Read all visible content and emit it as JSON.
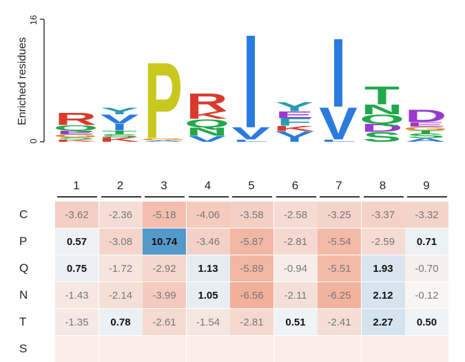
{
  "logo": {
    "ylabel": "Enriched residues",
    "ymax_label": "16",
    "ymin_label": "0",
    "colors": {
      "P": "#c8c81e",
      "V": "#2a7be0",
      "I": "#2a7be0",
      "L": "#2a7be0",
      "Y": "#2a9bb0",
      "R": "#d93a2b",
      "K": "#d93a2b",
      "H": "#d93a2b",
      "E": "#9a3ad0",
      "D": "#9a3ad0",
      "T": "#21a84a",
      "N": "#21a84a",
      "Q": "#21a84a",
      "S": "#21a84a",
      "G": "#e08a1e",
      "A": "#2a7be0",
      "F": "#2a9bb0",
      "M": "#2a7be0",
      "C": "#21a84a",
      "W": "#2a9bb0"
    },
    "stacks": [
      {
        "pos": "1",
        "letters": [
          {
            "aa": "R",
            "h": 1.6
          },
          {
            "aa": "Q",
            "h": 0.7
          },
          {
            "aa": "E",
            "h": 0.5
          },
          {
            "aa": "G",
            "h": 0.4
          },
          {
            "aa": "S",
            "h": 0.3
          },
          {
            "aa": "K",
            "h": 0.3
          }
        ]
      },
      {
        "pos": "2",
        "letters": [
          {
            "aa": "Y",
            "h": 0.9
          },
          {
            "aa": "V",
            "h": 1.2
          },
          {
            "aa": "I",
            "h": 0.9
          },
          {
            "aa": "T",
            "h": 0.5
          },
          {
            "aa": "S",
            "h": 0.4
          },
          {
            "aa": "K",
            "h": 0.6
          }
        ]
      },
      {
        "pos": "3",
        "letters": [
          {
            "aa": "P",
            "h": 10.2
          },
          {
            "aa": "G",
            "h": 0.3
          },
          {
            "aa": "A",
            "h": 0.2
          }
        ]
      },
      {
        "pos": "4",
        "letters": [
          {
            "aa": "R",
            "h": 2.4
          },
          {
            "aa": "K",
            "h": 1.0
          },
          {
            "aa": "Q",
            "h": 1.1
          },
          {
            "aa": "N",
            "h": 1.1
          },
          {
            "aa": "V",
            "h": 0.8
          }
        ]
      },
      {
        "pos": "5",
        "letters": [
          {
            "aa": "I",
            "h": 12.5
          },
          {
            "aa": "V",
            "h": 1.6
          },
          {
            "aa": "L",
            "h": 0.3
          }
        ]
      },
      {
        "pos": "6",
        "letters": [
          {
            "aa": "Y",
            "h": 1.2
          },
          {
            "aa": "E",
            "h": 0.9
          },
          {
            "aa": "F",
            "h": 1.0
          },
          {
            "aa": "K",
            "h": 0.7
          },
          {
            "aa": "V",
            "h": 0.8
          },
          {
            "aa": "I",
            "h": 0.6
          }
        ]
      },
      {
        "pos": "7",
        "letters": [
          {
            "aa": "I",
            "h": 9.2
          },
          {
            "aa": "V",
            "h": 4.3
          },
          {
            "aa": "L",
            "h": 0.3
          }
        ]
      },
      {
        "pos": "8",
        "letters": [
          {
            "aa": "T",
            "h": 2.4
          },
          {
            "aa": "N",
            "h": 1.3
          },
          {
            "aa": "Q",
            "h": 1.2
          },
          {
            "aa": "D",
            "h": 1.1
          },
          {
            "aa": "S",
            "h": 1.3
          }
        ]
      },
      {
        "pos": "9",
        "letters": [
          {
            "aa": "D",
            "h": 1.6
          },
          {
            "aa": "E",
            "h": 0.6
          },
          {
            "aa": "G",
            "h": 0.5
          },
          {
            "aa": "T",
            "h": 0.4
          },
          {
            "aa": "S",
            "h": 0.6
          },
          {
            "aa": "A",
            "h": 0.5
          }
        ]
      }
    ]
  },
  "chart_data": {
    "type": "heatmap",
    "columns": [
      "1",
      "2",
      "3",
      "4",
      "5",
      "6",
      "7",
      "8",
      "9"
    ],
    "rows": [
      "C",
      "P",
      "Q",
      "N",
      "T",
      "S"
    ],
    "values": [
      [
        -3.62,
        -2.36,
        -5.18,
        -4.06,
        -3.58,
        -2.58,
        -3.25,
        -3.37,
        -3.32
      ],
      [
        0.57,
        -3.08,
        10.74,
        -3.46,
        -5.87,
        -2.81,
        -5.54,
        -2.59,
        0.71
      ],
      [
        0.75,
        -1.72,
        -2.92,
        1.13,
        -5.89,
        -0.94,
        -5.51,
        1.93,
        -0.7
      ],
      [
        -1.43,
        -2.14,
        -3.99,
        1.05,
        -6.56,
        -2.11,
        -6.25,
        2.12,
        -0.12
      ],
      [
        -1.35,
        0.78,
        -2.61,
        -1.54,
        -2.81,
        0.51,
        -2.41,
        2.27,
        0.5
      ],
      [
        null,
        null,
        null,
        null,
        null,
        null,
        null,
        null,
        null
      ]
    ],
    "display": [
      [
        "-3.62",
        "-2.36",
        "-5.18",
        "-4.06",
        "-3.58",
        "-2.58",
        "-3.25",
        "-3.37",
        "-3.32"
      ],
      [
        "0.57",
        "-3.08",
        "10.74",
        "-3.46",
        "-5.87",
        "-2.81",
        "-5.54",
        "-2.59",
        "0.71"
      ],
      [
        "0.75",
        "-1.72",
        "-2.92",
        "1.13",
        "-5.89",
        "-0.94",
        "-5.51",
        "1.93",
        "-0.70"
      ],
      [
        "-1.43",
        "-2.14",
        "-3.99",
        "1.05",
        "-6.56",
        "-2.11",
        "-6.25",
        "2.12",
        "-0.12"
      ],
      [
        "-1.35",
        "0.78",
        "-2.61",
        "-1.54",
        "-2.81",
        "0.51",
        "-2.41",
        "2.27",
        "0.50"
      ],
      [
        "",
        "",
        "",
        "",
        "",
        "",
        "",
        "",
        ""
      ]
    ],
    "colors": {
      "negative": "#f1a58c",
      "positive": "#4f97c9",
      "neutral": "#f7f7f7"
    }
  }
}
